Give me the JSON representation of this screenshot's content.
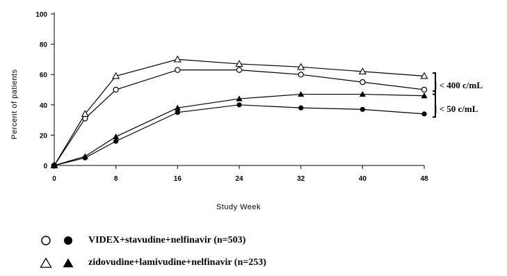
{
  "chart_data": {
    "type": "line",
    "xlabel": "Study Week",
    "ylabel": "Percent of patients",
    "x": [
      0,
      4,
      8,
      16,
      24,
      32,
      40,
      48
    ],
    "xticks": [
      "0",
      "8",
      "16",
      "24",
      "32",
      "40",
      "48"
    ],
    "xtick_values": [
      0,
      8,
      16,
      24,
      32,
      40,
      48
    ],
    "yticks": [
      "0",
      "20",
      "40",
      "60",
      "80",
      "100"
    ],
    "ytick_values": [
      0,
      20,
      40,
      60,
      80,
      100
    ],
    "xlim": [
      0,
      48
    ],
    "ylim": [
      0,
      100
    ],
    "grid": false,
    "series": [
      {
        "name": "VIDEX+stavudine+nelfinavir (n=503)",
        "threshold": "< 400 c/mL",
        "marker": "open-circle",
        "values": [
          0,
          31,
          50,
          63,
          63,
          60,
          55,
          50
        ]
      },
      {
        "name": "VIDEX+stavudine+nelfinavir (n=503)",
        "threshold": "< 50 c/mL",
        "marker": "filled-circle",
        "values": [
          0,
          5,
          16,
          35,
          40,
          38,
          37,
          34
        ]
      },
      {
        "name": "zidovudine+lamivudine+nelfinavir (n=253)",
        "threshold": "< 400 c/mL",
        "marker": "open-triangle",
        "values": [
          0,
          34,
          59,
          70,
          67,
          65,
          62,
          59
        ]
      },
      {
        "name": "zidovudine+lamivudine+nelfinavir (n=253)",
        "threshold": "< 50 c/mL",
        "marker": "filled-triangle",
        "values": [
          0,
          6,
          19,
          38,
          44,
          47,
          47,
          46
        ]
      }
    ],
    "annotations": [
      "< 400 c/mL",
      "< 50 c/mL"
    ],
    "legend": {
      "placement": "bottom-left",
      "entries": [
        {
          "label": "VIDEX+stavudine+nelfinavir (n=503)",
          "markers": [
            "open-circle",
            "filled-circle"
          ]
        },
        {
          "label": "zidovudine+lamivudine+nelfinavir (n=253)",
          "markers": [
            "open-triangle",
            "filled-triangle"
          ]
        }
      ]
    }
  },
  "y_axis_label_display": "Percent of patients",
  "x_axis_label_display": "Study Week",
  "annotation_400": "] < 400 c/mL",
  "annotation_50": "] < 50 c/mL",
  "legend_label_1": "VIDEX+stavudine+nelfinavir (n=503)",
  "legend_label_2": "zidovudine+lamivudine+nelfinavir (n=253)"
}
